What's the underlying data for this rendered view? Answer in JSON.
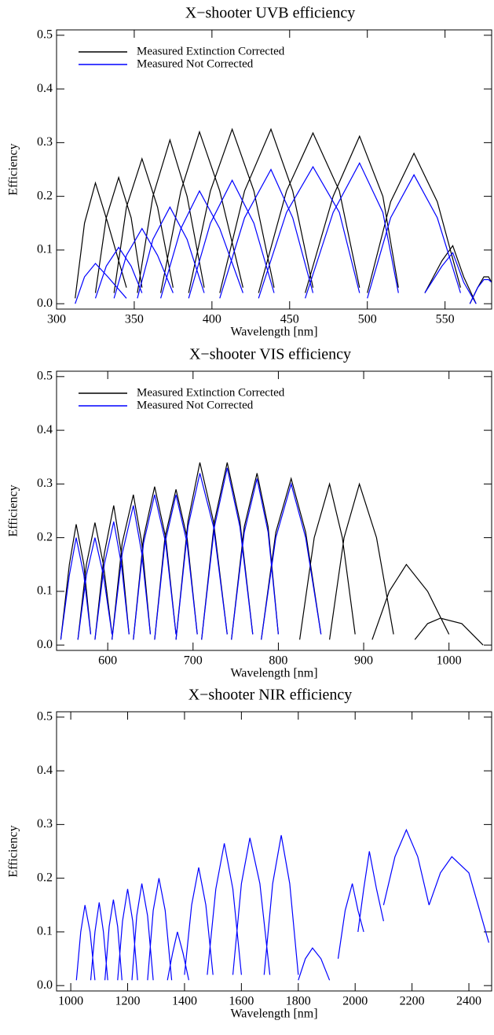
{
  "chart_data": [
    {
      "type": "line",
      "title": "X−shooter UVB efficiency",
      "x_label": "Wavelength [nm]",
      "y_label": "Efficiency",
      "xlim": [
        300,
        580
      ],
      "xticks": [
        300,
        350,
        400,
        450,
        500,
        550
      ],
      "ylim": [
        -0.01,
        0.51
      ],
      "yticks": [
        {
          "value": 0,
          "label": "0.0"
        },
        0.1,
        0.2,
        0.3,
        0.4,
        0.5
      ],
      "legend": "upper left",
      "series": [
        {
          "name": "Measured Extinction Corrected",
          "color": "#000000",
          "x": [
            312,
            318,
            325,
            333,
            345,
            null,
            325,
            332,
            340,
            348,
            355,
            null,
            337,
            345,
            355,
            365,
            375,
            null,
            352,
            362,
            373,
            384,
            395,
            null,
            367,
            380,
            392,
            405,
            420,
            null,
            385,
            399,
            413,
            427,
            440,
            null,
            405,
            421,
            438,
            452,
            465,
            null,
            430,
            448,
            465,
            482,
            495,
            null,
            460,
            478,
            495,
            510,
            520,
            null,
            500,
            515,
            530,
            545,
            560,
            null,
            537,
            548,
            555,
            562,
            570,
            null,
            566,
            571,
            575,
            578,
            580
          ],
          "values": [
            0.01,
            0.15,
            0.225,
            0.15,
            0.03,
            null,
            0.02,
            0.16,
            0.235,
            0.16,
            0.03,
            null,
            0.02,
            0.18,
            0.27,
            0.18,
            0.03,
            null,
            0.02,
            0.2,
            0.305,
            0.2,
            0.03,
            null,
            0.02,
            0.21,
            0.32,
            0.21,
            0.03,
            null,
            0.02,
            0.21,
            0.325,
            0.21,
            0.03,
            null,
            0.02,
            0.21,
            0.325,
            0.21,
            0.03,
            null,
            0.02,
            0.21,
            0.318,
            0.21,
            0.03,
            null,
            0.02,
            0.2,
            0.312,
            0.2,
            0.03,
            null,
            0.02,
            0.19,
            0.28,
            0.19,
            0.03,
            null,
            0.02,
            0.08,
            0.108,
            0.05,
            0,
            null,
            0,
            0.03,
            0.05,
            0.05,
            0.04
          ]
        },
        {
          "name": "Measured Not Corrected",
          "color": "#0000ff",
          "x": [
            312,
            318,
            325,
            333,
            345,
            null,
            325,
            332,
            340,
            348,
            355,
            null,
            337,
            345,
            355,
            365,
            375,
            null,
            352,
            362,
            373,
            384,
            395,
            null,
            367,
            380,
            392,
            405,
            420,
            null,
            385,
            399,
            413,
            427,
            440,
            null,
            405,
            421,
            438,
            452,
            465,
            null,
            430,
            448,
            465,
            482,
            495,
            null,
            460,
            478,
            495,
            510,
            520,
            null,
            500,
            515,
            530,
            545,
            560,
            null,
            537,
            548,
            555,
            562,
            570,
            null,
            566,
            571,
            575,
            578,
            580
          ],
          "values": [
            0,
            0.05,
            0.075,
            0.05,
            0.01,
            null,
            0.01,
            0.07,
            0.105,
            0.07,
            0.02,
            null,
            0.01,
            0.09,
            0.14,
            0.09,
            0.02,
            null,
            0.01,
            0.12,
            0.18,
            0.12,
            0.02,
            null,
            0.01,
            0.14,
            0.21,
            0.14,
            0.02,
            null,
            0.01,
            0.15,
            0.23,
            0.15,
            0.02,
            null,
            0.01,
            0.16,
            0.25,
            0.16,
            0.02,
            null,
            0.01,
            0.17,
            0.255,
            0.17,
            0.02,
            null,
            0.01,
            0.17,
            0.262,
            0.17,
            0.02,
            null,
            0.01,
            0.16,
            0.24,
            0.16,
            0.02,
            null,
            0.02,
            0.07,
            0.095,
            0.04,
            0,
            null,
            0,
            0.03,
            0.045,
            0.045,
            0.04
          ]
        }
      ]
    },
    {
      "type": "line",
      "title": "X−shooter VIS efficiency",
      "x_label": "Wavelength [nm]",
      "y_label": "Efficiency",
      "xlim": [
        540,
        1050
      ],
      "xticks": [
        600,
        700,
        800,
        900,
        1000
      ],
      "ylim": [
        -0.01,
        0.51
      ],
      "yticks": [
        {
          "value": 0,
          "label": "0.0"
        },
        0.1,
        0.2,
        0.3,
        0.4,
        0.5
      ],
      "legend": "upper left",
      "series": [
        {
          "name": "Measured Extinction Corrected",
          "color": "#000000",
          "x": [
            545,
            555,
            563,
            572,
            580,
            null,
            565,
            575,
            585,
            595,
            605,
            null,
            585,
            596,
            607,
            616,
            625,
            null,
            605,
            617,
            630,
            640,
            650,
            null,
            630,
            642,
            655,
            668,
            680,
            null,
            655,
            667,
            680,
            693,
            705,
            null,
            680,
            694,
            708,
            724,
            740,
            null,
            710,
            725,
            740,
            755,
            770,
            null,
            745,
            760,
            775,
            788,
            800,
            null,
            780,
            797,
            815,
            832,
            850,
            null,
            825,
            842,
            860,
            875,
            890,
            null,
            860,
            877,
            895,
            915,
            935,
            null,
            910,
            930,
            950,
            975,
            1000,
            null,
            960,
            975,
            990,
            1015,
            1040
          ],
          "values": [
            0.01,
            0.15,
            0.225,
            0.15,
            0.02,
            null,
            0.01,
            0.15,
            0.228,
            0.15,
            0.02,
            null,
            0.01,
            0.17,
            0.26,
            0.17,
            0.02,
            null,
            0.01,
            0.19,
            0.28,
            0.19,
            0.02,
            null,
            0.01,
            0.2,
            0.295,
            0.2,
            0.02,
            null,
            0.01,
            0.2,
            0.29,
            0.2,
            0.02,
            null,
            0.01,
            0.23,
            0.34,
            0.23,
            0.02,
            null,
            0.01,
            0.23,
            0.34,
            0.23,
            0.02,
            null,
            0.01,
            0.22,
            0.32,
            0.22,
            0.02,
            null,
            0.01,
            0.21,
            0.31,
            0.21,
            0.02,
            null,
            0.01,
            0.2,
            0.3,
            0.2,
            0.02,
            null,
            0.01,
            0.2,
            0.3,
            0.2,
            0.02,
            null,
            0.01,
            0.1,
            0.15,
            0.1,
            0.02,
            null,
            0.01,
            0.04,
            0.05,
            0.04,
            0
          ]
        },
        {
          "name": "Measured Not Corrected",
          "color": "#0000ff",
          "x": [
            545,
            555,
            563,
            572,
            580,
            null,
            565,
            575,
            585,
            595,
            605,
            null,
            585,
            596,
            607,
            616,
            625,
            null,
            605,
            617,
            630,
            640,
            650,
            null,
            630,
            642,
            655,
            668,
            680,
            null,
            655,
            667,
            680,
            693,
            705,
            null,
            680,
            694,
            708,
            724,
            740,
            null,
            710,
            725,
            740,
            755,
            770,
            null,
            745,
            760,
            775,
            788,
            800,
            null,
            780,
            797,
            815,
            832,
            850
          ],
          "values": [
            0.01,
            0.13,
            0.2,
            0.13,
            0.02,
            null,
            0.01,
            0.13,
            0.2,
            0.13,
            0.02,
            null,
            0.01,
            0.15,
            0.23,
            0.15,
            0.02,
            null,
            0.01,
            0.17,
            0.26,
            0.17,
            0.02,
            null,
            0.01,
            0.19,
            0.28,
            0.19,
            0.02,
            null,
            0.01,
            0.19,
            0.28,
            0.19,
            0.02,
            null,
            0.01,
            0.22,
            0.32,
            0.22,
            0.02,
            null,
            0.01,
            0.22,
            0.33,
            0.22,
            0.02,
            null,
            0.01,
            0.21,
            0.31,
            0.21,
            0.02,
            null,
            0.01,
            0.2,
            0.3,
            0.2,
            0.02
          ]
        }
      ]
    },
    {
      "type": "line",
      "title": "X−shooter NIR efficiency",
      "x_label": "Wavelength [nm]",
      "y_label": "Efficiency",
      "xlim": [
        950,
        2480
      ],
      "xticks": [
        1000,
        1200,
        1400,
        1600,
        1800,
        2000,
        2200,
        2400
      ],
      "ylim": [
        -0.01,
        0.51
      ],
      "yticks": [
        {
          "value": 0,
          "label": "0.0"
        },
        0.1,
        0.2,
        0.3,
        0.4,
        0.5
      ],
      "series": [
        {
          "color": "#0000ff",
          "x": [
            1020,
            1035,
            1050,
            1068,
            1085,
            null,
            1070,
            1085,
            1100,
            1115,
            1130,
            null,
            1120,
            1135,
            1150,
            1165,
            1180,
            null,
            1165,
            1182,
            1200,
            1218,
            1235,
            null,
            1215,
            1232,
            1250,
            1270,
            1290,
            null,
            1270,
            1290,
            1310,
            1332,
            1355,
            null,
            1340,
            1358,
            1375,
            1395,
            1415,
            null,
            1400,
            1425,
            1450,
            1475,
            1500,
            null,
            1480,
            1510,
            1540,
            1570,
            1600,
            null,
            1570,
            1600,
            1630,
            1665,
            1700,
            null,
            1680,
            1710,
            1740,
            1770,
            1800,
            null,
            1800,
            1825,
            1850,
            1880,
            1910,
            null,
            1940,
            1965,
            1990,
            2010,
            2030,
            null,
            2010,
            2030,
            2050,
            2075,
            2100,
            null,
            2100,
            2140,
            2180,
            2220,
            2260,
            null,
            2260,
            2300,
            2340,
            2400,
            2470
          ],
          "values": [
            0.01,
            0.1,
            0.15,
            0.1,
            0.01,
            null,
            0.01,
            0.1,
            0.155,
            0.1,
            0.01,
            null,
            0.01,
            0.11,
            0.16,
            0.11,
            0.01,
            null,
            0.01,
            0.12,
            0.18,
            0.12,
            0.01,
            null,
            0.01,
            0.13,
            0.19,
            0.13,
            0.01,
            null,
            0.01,
            0.14,
            0.2,
            0.14,
            0.01,
            null,
            0.01,
            0.06,
            0.1,
            0.06,
            0.01,
            null,
            0.02,
            0.15,
            0.22,
            0.15,
            0.02,
            null,
            0.02,
            0.18,
            0.265,
            0.18,
            0.02,
            null,
            0.02,
            0.19,
            0.275,
            0.19,
            0.02,
            null,
            0.02,
            0.19,
            0.28,
            0.19,
            0.02,
            null,
            0.01,
            0.05,
            0.07,
            0.05,
            0.01,
            null,
            0.05,
            0.14,
            0.19,
            0.14,
            0.1,
            null,
            0.1,
            0.18,
            0.25,
            0.18,
            0.12,
            null,
            0.15,
            0.24,
            0.29,
            0.24,
            0.15,
            null,
            0.15,
            0.21,
            0.24,
            0.21,
            0.08
          ]
        }
      ]
    }
  ]
}
